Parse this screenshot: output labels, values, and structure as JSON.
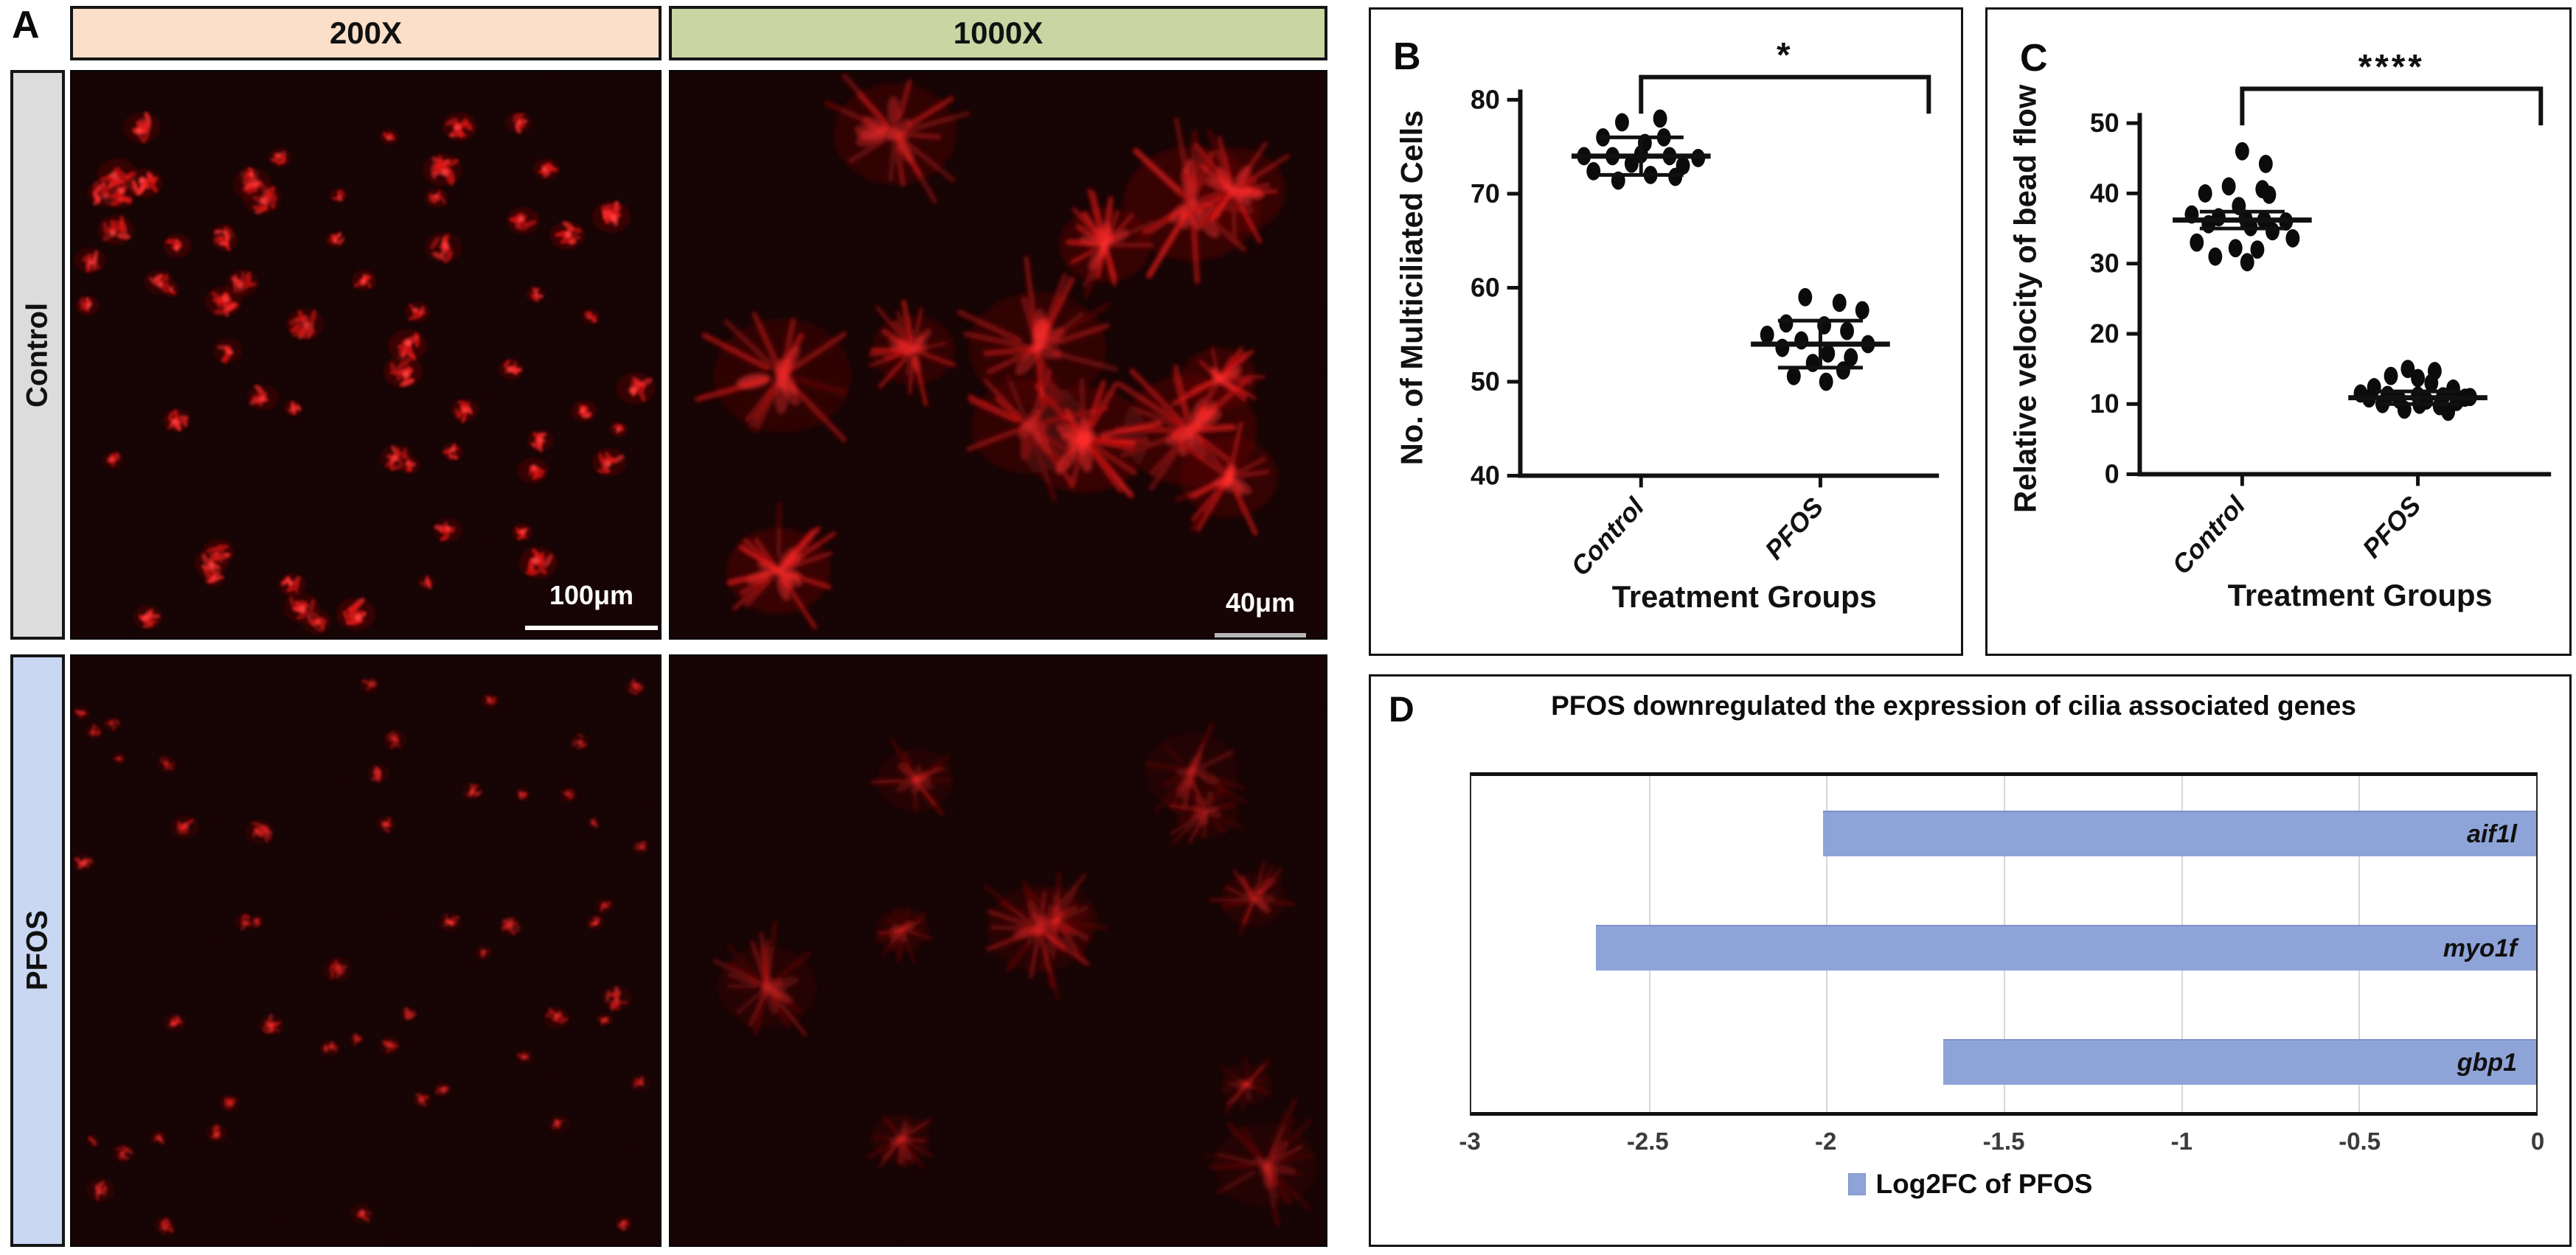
{
  "panel_a": {
    "label": "A",
    "columns": [
      {
        "label": "200X",
        "bg": "#fbdfc9"
      },
      {
        "label": "1000X",
        "bg": "#c9d6a4"
      }
    ],
    "rows": [
      {
        "label": "Control",
        "bg": "#dcdcdc"
      },
      {
        "label": "PFOS",
        "bg": "#c9d7f3"
      }
    ],
    "background": "#170404",
    "micrographs": [
      {
        "name": "control-200x",
        "scalebar": "100μm",
        "scalebar_color": "#ffffff",
        "style": "spots",
        "seed": 11,
        "cells": 66,
        "rmin": 10,
        "rmax": 24,
        "brightness": 1.0
      },
      {
        "name": "control-1000x",
        "scalebar": "40μm",
        "scalebar_color": "#b5b5b5",
        "style": "tufts",
        "seed": 22,
        "cells": 13,
        "rmin": 42,
        "rmax": 88,
        "brightness": 0.95
      },
      {
        "name": "pfos-200x",
        "scalebar": "",
        "scalebar_color": "",
        "style": "spots",
        "seed": 33,
        "cells": 52,
        "rmin": 8,
        "rmax": 18,
        "brightness": 0.62
      },
      {
        "name": "pfos-1000x",
        "scalebar": "",
        "scalebar_color": "",
        "style": "tufts",
        "seed": 44,
        "cells": 11,
        "rmin": 30,
        "rmax": 62,
        "brightness": 0.5
      }
    ]
  },
  "chart_data": [
    {
      "panel_label": "B",
      "type": "scatter",
      "ylabel": "No. of Multiciliated Cells",
      "xlabel": "Treatment Groups",
      "categories": [
        "Control",
        "PFOS"
      ],
      "ylim": [
        40,
        80
      ],
      "yticks": [
        80,
        70,
        60,
        50,
        40
      ],
      "significance": "*",
      "grid": false,
      "legend_position": "none",
      "series": [
        {
          "name": "Control",
          "mean": 74,
          "sd": 2,
          "points": [
            [
              -0.1,
              77.6
            ],
            [
              0.1,
              78
            ],
            [
              -0.2,
              76
            ],
            [
              0.12,
              76
            ],
            [
              0.02,
              75.4
            ],
            [
              -0.3,
              74
            ],
            [
              -0.15,
              74
            ],
            [
              0.0,
              74.2
            ],
            [
              0.15,
              74
            ],
            [
              0.3,
              73.8
            ],
            [
              -0.05,
              73.2
            ],
            [
              0.22,
              73
            ],
            [
              -0.25,
              72.4
            ],
            [
              0.05,
              72
            ],
            [
              -0.12,
              71.4
            ],
            [
              0.18,
              71.8
            ]
          ]
        },
        {
          "name": "PFOS",
          "mean": 54,
          "sd": 2.5,
          "points": [
            [
              -0.08,
              59
            ],
            [
              0.1,
              58.4
            ],
            [
              0.22,
              57.6
            ],
            [
              -0.18,
              56.2
            ],
            [
              0.02,
              56
            ],
            [
              0.14,
              55.4
            ],
            [
              -0.28,
              55
            ],
            [
              -0.1,
              54.4
            ],
            [
              0.25,
              54
            ],
            [
              -0.2,
              53.6
            ],
            [
              0.04,
              53
            ],
            [
              0.16,
              52.6
            ],
            [
              -0.04,
              52
            ],
            [
              0.12,
              51.2
            ],
            [
              -0.14,
              50.6
            ],
            [
              0.03,
              50
            ]
          ]
        }
      ]
    },
    {
      "panel_label": "C",
      "type": "scatter",
      "ylabel": "Relative velocity of bead flow",
      "xlabel": "Treatment Groups",
      "categories": [
        "Control",
        "PFOS"
      ],
      "ylim": [
        0,
        50
      ],
      "yticks": [
        50,
        40,
        30,
        20,
        10,
        0
      ],
      "significance": "****",
      "grid": false,
      "legend_position": "none",
      "series": [
        {
          "name": "Control",
          "mean": 36.2,
          "sd": 1.2,
          "points": [
            [
              0.0,
              46
            ],
            [
              0.14,
              44.2
            ],
            [
              -0.08,
              41
            ],
            [
              0.12,
              40.6
            ],
            [
              -0.22,
              40
            ],
            [
              0.16,
              39.8
            ],
            [
              -0.02,
              38.2
            ],
            [
              -0.3,
              37
            ],
            [
              -0.14,
              36.6
            ],
            [
              0.02,
              36.4
            ],
            [
              0.13,
              36.2
            ],
            [
              0.26,
              36
            ],
            [
              -0.2,
              35.6
            ],
            [
              0.05,
              35.2
            ],
            [
              0.18,
              34.6
            ],
            [
              0.3,
              33.6
            ],
            [
              -0.27,
              33
            ],
            [
              -0.04,
              32.2
            ],
            [
              0.09,
              32
            ],
            [
              -0.16,
              31
            ],
            [
              0.03,
              30.2
            ]
          ]
        },
        {
          "name": "PFOS",
          "mean": 10.9,
          "sd": 0.9,
          "points": [
            [
              -0.06,
              15
            ],
            [
              0.1,
              14.7
            ],
            [
              -0.16,
              14
            ],
            [
              0.0,
              13.7
            ],
            [
              0.08,
              13
            ],
            [
              -0.26,
              12.4
            ],
            [
              0.21,
              12.2
            ],
            [
              -0.34,
              11.5
            ],
            [
              -0.18,
              11.3
            ],
            [
              0.0,
              11.2
            ],
            [
              0.15,
              11.1
            ],
            [
              0.31,
              11
            ],
            [
              -0.29,
              10.8
            ],
            [
              -0.11,
              10.6
            ],
            [
              0.05,
              10.5
            ],
            [
              0.23,
              10.3
            ],
            [
              -0.21,
              10
            ],
            [
              0.01,
              9.9
            ],
            [
              0.13,
              9.7
            ],
            [
              -0.08,
              9.2
            ],
            [
              0.18,
              8.9
            ],
            [
              0.28,
              10.9
            ]
          ]
        }
      ]
    },
    {
      "panel_label": "D",
      "type": "bar",
      "orientation": "horizontal",
      "title": "PFOS downregulated the expression of cilia associated genes",
      "categories": [
        "aif1l",
        "myo1f",
        "gbp1"
      ],
      "values": [
        -2.01,
        -2.65,
        -1.67
      ],
      "xlim": [
        -3,
        0
      ],
      "xticks": [
        -3,
        -2.5,
        -2,
        -1.5,
        -1,
        -0.5,
        0
      ],
      "xtick_labels": [
        "-3",
        "-2.5",
        "-2",
        "-1.5",
        "-1",
        "-0.5",
        "0"
      ],
      "legend": "Log2FC of PFOS",
      "bar_color": "#8ea3d8",
      "grid": true,
      "legend_position": "bottom"
    }
  ]
}
